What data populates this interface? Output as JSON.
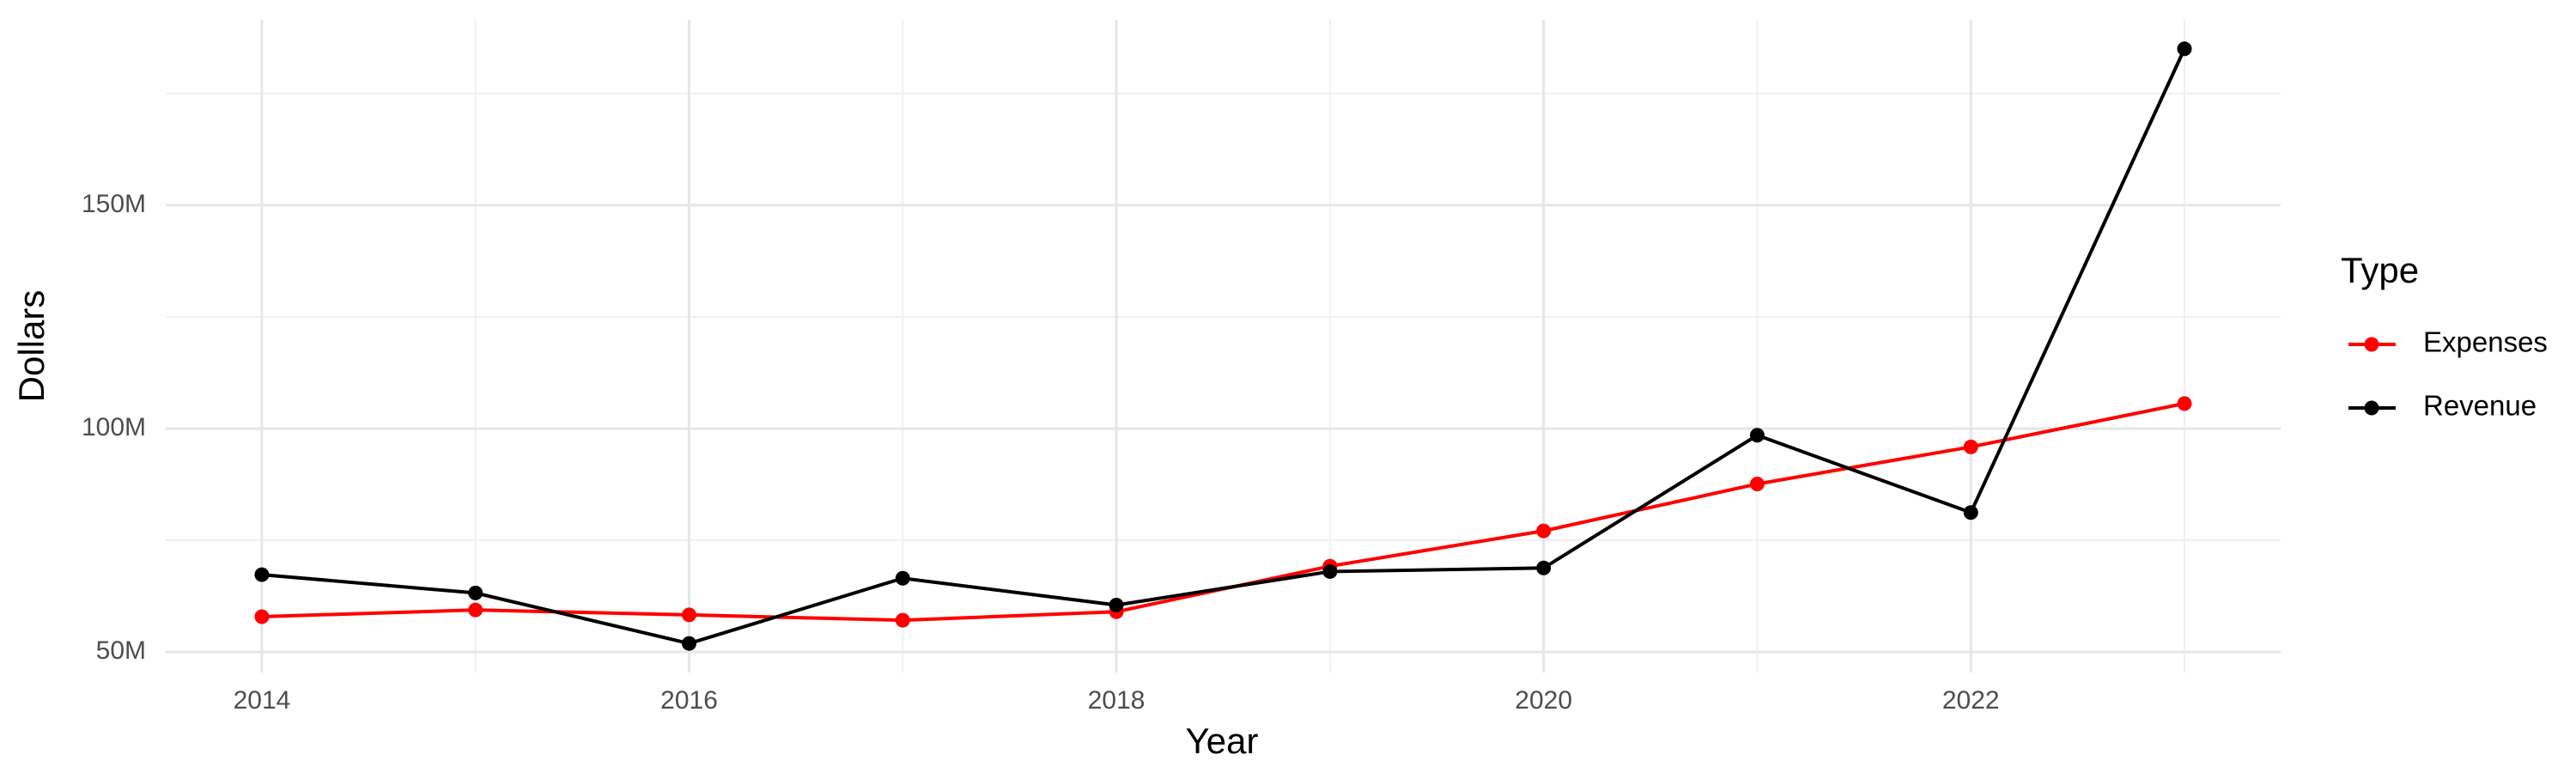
{
  "chart_data": {
    "type": "line",
    "x_label": "Year",
    "y_label": "Dollars",
    "legend_title": "Type",
    "x": [
      2014,
      2015,
      2016,
      2017,
      2018,
      2019,
      2020,
      2021,
      2022,
      2023
    ],
    "series": [
      {
        "name": "Expenses",
        "color": "#ff0000",
        "values": [
          57900000,
          59400000,
          58300000,
          57100000,
          59000000,
          69200000,
          77100000,
          87600000,
          95900000,
          105600000
        ]
      },
      {
        "name": "Revenue",
        "color": "#000000",
        "values": [
          67300000,
          63200000,
          51900000,
          66500000,
          60500000,
          68000000,
          68800000,
          98500000,
          81200000,
          185000000
        ]
      }
    ],
    "xlim": [
      2013.55,
      2023.45
    ],
    "xticks": [
      2014,
      2016,
      2018,
      2020,
      2022
    ],
    "x_minor_ticks": [
      2015,
      2017,
      2019,
      2021,
      2023
    ],
    "ylim": [
      45400000,
      191500000
    ],
    "yticks": [
      {
        "value": 50000000,
        "label": "50M"
      },
      {
        "value": 100000000,
        "label": "100M"
      },
      {
        "value": 150000000,
        "label": "150M"
      }
    ],
    "y_minor_ticks": [
      75000000,
      125000000,
      175000000
    ],
    "grid": true,
    "legend_position": "right"
  }
}
